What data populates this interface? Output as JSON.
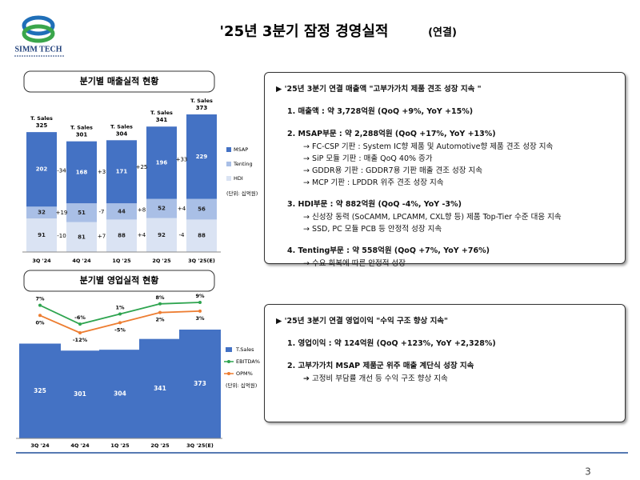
{
  "header": {
    "logo_text": "SIMM TECH",
    "title": "'25년 3분기 잠정 경영실적",
    "title_suffix": "(연결)",
    "page_number": "3"
  },
  "sections": [
    "분기별 매출실적 현황",
    "분기별 영업실적 현황"
  ],
  "chart_data": [
    {
      "type": "stacked_bar",
      "categories": [
        "3Q '24",
        "4Q '24",
        "1Q '25",
        "2Q '25",
        "3Q '25(E)"
      ],
      "series": [
        {
          "name": "HDI",
          "color": "#dae3f3",
          "values": [
            91,
            81,
            88,
            92,
            88
          ],
          "change_labels": [
            "-10",
            "+7",
            "+4",
            "-4"
          ]
        },
        {
          "name": "Tenting",
          "color": "#a9bfe6",
          "values": [
            32,
            51,
            44,
            52,
            56
          ],
          "change_labels": [
            "+19",
            "-7",
            "+8",
            "+4"
          ]
        },
        {
          "name": "MSAP",
          "color": "#4472c4",
          "values": [
            202,
            168,
            171,
            196,
            229
          ],
          "change_labels": [
            "-34",
            "+3",
            "+25",
            "+33"
          ]
        }
      ],
      "total_label": "T. Sales",
      "totals": [
        325,
        301,
        304,
        341,
        373
      ],
      "unit": "(단위: 십억원)"
    },
    {
      "type": "bar_line",
      "categories": [
        "3Q '24",
        "4Q '24",
        "1Q '25",
        "2Q '25",
        "3Q '25(E)"
      ],
      "series": [
        {
          "name": "T.Sales",
          "type": "bar",
          "color": "#4472c4",
          "values": [
            325,
            301,
            304,
            341,
            373
          ]
        },
        {
          "name": "EBITDA%",
          "type": "line",
          "color": "#2ea44f",
          "values": [
            7,
            -6,
            1,
            8,
            9
          ],
          "value_labels": [
            "7%",
            "-6%",
            "1%",
            "8%",
            "9%"
          ]
        },
        {
          "name": "OPM%",
          "type": "line",
          "color": "#ed7d31",
          "values": [
            0,
            -12,
            -5,
            2,
            3
          ],
          "value_labels": [
            "0%",
            "-12%",
            "-5%",
            "2%",
            "3%"
          ]
        }
      ],
      "unit": "(단위: 십억원)"
    }
  ],
  "panels": [
    {
      "heading": "'25년 3분기 연결 매출액 \"고부가가치 제품 견조 성장 지속 \"",
      "items": [
        {
          "text": "1. 매출액 : 약 3,728억원 (QoQ +9%, YoY +15%)",
          "details": []
        },
        {
          "text": "2. MSAP부문 : 약 2,288억원 (QoQ +17%, YoY +13%)",
          "details": [
            "→ FC-CSP 기판 : System IC향 제품 및 Automotive향 제품 견조 성장 지속",
            "→ SiP 모듈 기판 : 매출 QoQ 40% 증가",
            "→ GDDR용 기판 : GDDR7용 기판 매출 견조 성장 지속",
            "→ MCP 기판 : LPDDR 위주 견조 성장 지속"
          ]
        },
        {
          "text": "3. HDI부문 : 약 882억원 (QoQ -4%, YoY -3%)",
          "details": [
            "→ 신성장 동력 (SoCAMM, LPCAMM, CXL향 등) 제품 Top-Tier 수준 대응 지속",
            "→ SSD, PC 모듈 PCB 등 안정적 성장 지속"
          ]
        },
        {
          "text": "4. Tenting부문 : 약 558억원 (QoQ +7%, YoY +76%)",
          "details": [
            "→ 수요 회복에 따른 안정적 성장"
          ]
        }
      ]
    },
    {
      "heading": "'25년 3분기 연결 영업이익 \"수익 구조 향상 지속\"",
      "items": [
        {
          "text": "1. 영업이익 : 약 124억원 (QoQ +123%, YoY +2,328%)",
          "details": []
        },
        {
          "text": "2. 고부가가치 MSAP 제품군 위주 매출 계단식 성장 지속",
          "details": [
            "➔ 고정비 부담률 개선 등 수익 구조 향상 지속"
          ]
        }
      ]
    }
  ]
}
